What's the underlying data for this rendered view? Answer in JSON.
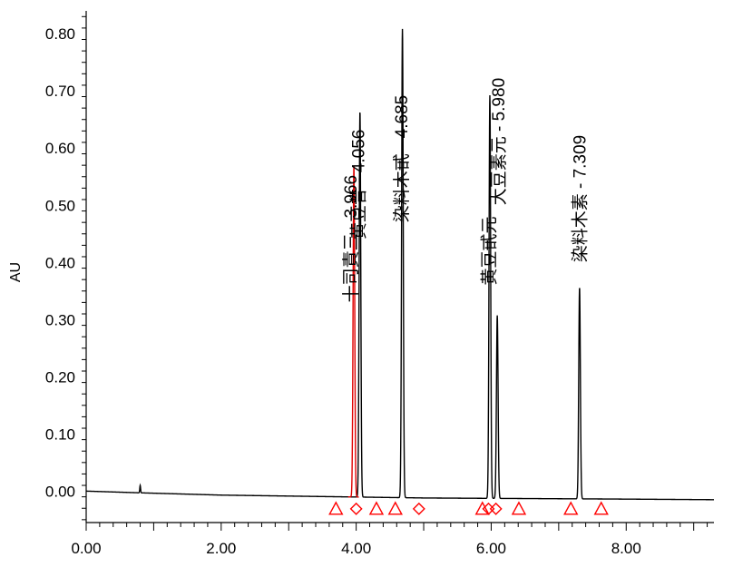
{
  "chart_data": {
    "type": "line",
    "title": "",
    "xlabel": "",
    "ylabel": "AU",
    "xlim": [
      0,
      9.3
    ],
    "ylim": [
      -0.055,
      0.84
    ],
    "x_ticks": [
      "0.00",
      "2.00",
      "4.00",
      "6.00",
      "8.00"
    ],
    "x_tick_values": [
      0,
      2,
      4,
      6,
      8
    ],
    "y_ticks": [
      "0.00",
      "0.10",
      "0.20",
      "0.30",
      "0.40",
      "0.50",
      "0.60",
      "0.70",
      "0.80"
    ],
    "y_tick_values": [
      0,
      0.1,
      0.2,
      0.3,
      0.4,
      0.5,
      0.6,
      0.7,
      0.8
    ],
    "grid": false,
    "baseline": [
      [
        0,
        0.0
      ],
      [
        0.8,
        -0.003
      ],
      [
        2.0,
        -0.007
      ],
      [
        3.8,
        -0.01
      ],
      [
        5.0,
        -0.012
      ],
      [
        6.5,
        -0.013
      ],
      [
        8.0,
        -0.014
      ],
      [
        9.3,
        -0.015
      ]
    ],
    "small_peak": {
      "x": 0.8,
      "height": 0.013
    },
    "series": [
      {
        "name": "black",
        "color": "#000000",
        "peaks": [
          {
            "rt": 4.056,
            "height": 0.675
          },
          {
            "rt": 4.685,
            "height": 0.82
          },
          {
            "rt": 5.98,
            "height": 0.705
          },
          {
            "rt": 6.09,
            "height": 0.32
          },
          {
            "rt": 7.309,
            "height": 0.37
          }
        ]
      },
      {
        "name": "red",
        "color": "#e00000",
        "peaks": [
          {
            "rt": 3.966,
            "height": 0.58
          }
        ]
      }
    ],
    "peak_labels": [
      {
        "text": "十司責三 - 3.966",
        "x": 3.94
      },
      {
        "text": "黄豆昔 - 4.056",
        "x": 4.05
      },
      {
        "text": "染料木甙 - 4.685",
        "x": 4.69
      },
      {
        "text": "黄豆甙元",
        "x": 5.99
      },
      {
        "text": "大豆素元 - 5.980",
        "x": 6.13
      },
      {
        "text": "染料木素 - 7.309",
        "x": 7.33
      }
    ],
    "markers": [
      {
        "x": 3.7,
        "shape": "triangle"
      },
      {
        "x": 4.0,
        "shape": "diamond"
      },
      {
        "x": 4.3,
        "shape": "triangle"
      },
      {
        "x": 4.58,
        "shape": "triangle"
      },
      {
        "x": 4.93,
        "shape": "diamond"
      },
      {
        "x": 5.87,
        "shape": "triangle"
      },
      {
        "x": 5.96,
        "shape": "diamond"
      },
      {
        "x": 6.07,
        "shape": "diamond"
      },
      {
        "x": 6.41,
        "shape": "triangle"
      },
      {
        "x": 7.18,
        "shape": "triangle"
      },
      {
        "x": 7.63,
        "shape": "triangle"
      }
    ],
    "marker_color": "#ff0000"
  }
}
